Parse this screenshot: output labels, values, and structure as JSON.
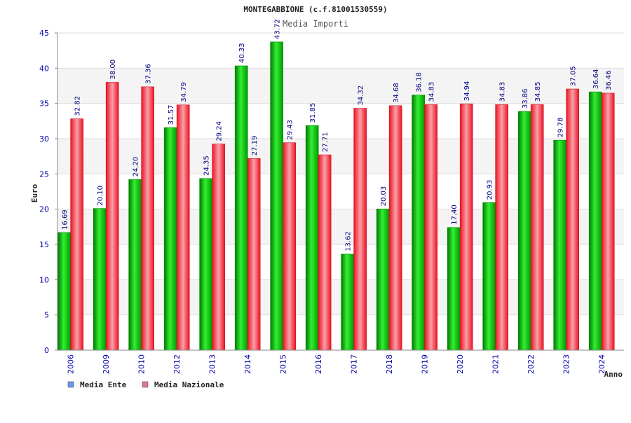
{
  "chart_data": {
    "type": "bar",
    "title": "MONTEGABBIONE (c.f.81001530559)",
    "subtitle": "Media Importi",
    "xlabel": "Anno",
    "ylabel": "Euro",
    "ylim": [
      0,
      45
    ],
    "yticks": [
      "0",
      "5",
      "10",
      "15",
      "20",
      "25",
      "30",
      "35",
      "40",
      "45"
    ],
    "categories": [
      "2006",
      "2009",
      "2010",
      "2012",
      "2013",
      "2014",
      "2015",
      "2016",
      "2017",
      "2018",
      "2019",
      "2020",
      "2021",
      "2022",
      "2023",
      "2024"
    ],
    "series": [
      {
        "name": "Media Ente",
        "color": "#00bb00",
        "values": [
          16.69,
          20.1,
          24.2,
          31.57,
          24.35,
          40.33,
          43.72,
          31.85,
          13.62,
          20.03,
          36.18,
          17.4,
          20.93,
          33.86,
          29.78,
          36.64
        ],
        "labels": [
          "16.69",
          "20.10",
          "24.20",
          "31.57",
          "24.35",
          "40.33",
          "43.72",
          "31.85",
          "13.62",
          "20.03",
          "36.18",
          "17.40",
          "20.93",
          "33.86",
          "29.78",
          "36.64"
        ]
      },
      {
        "name": "Media Nazionale",
        "color": "#ee2233",
        "values": [
          32.82,
          38.0,
          37.36,
          34.79,
          29.24,
          27.19,
          29.43,
          27.71,
          34.32,
          34.68,
          34.83,
          34.94,
          34.83,
          34.85,
          37.05,
          36.46
        ],
        "labels": [
          "32.82",
          "38.00",
          "37.36",
          "34.79",
          "29.24",
          "27.19",
          "29.43",
          "27.71",
          "34.32",
          "34.68",
          "34.83",
          "34.94",
          "34.83",
          "34.85",
          "37.05",
          "36.46"
        ]
      }
    ],
    "legend": [
      {
        "label": "Media Ente",
        "color": "#6699ee"
      },
      {
        "label": "Media Nazionale",
        "color": "#dd7799"
      }
    ],
    "legend_position": "bottom-left",
    "grid": true
  }
}
